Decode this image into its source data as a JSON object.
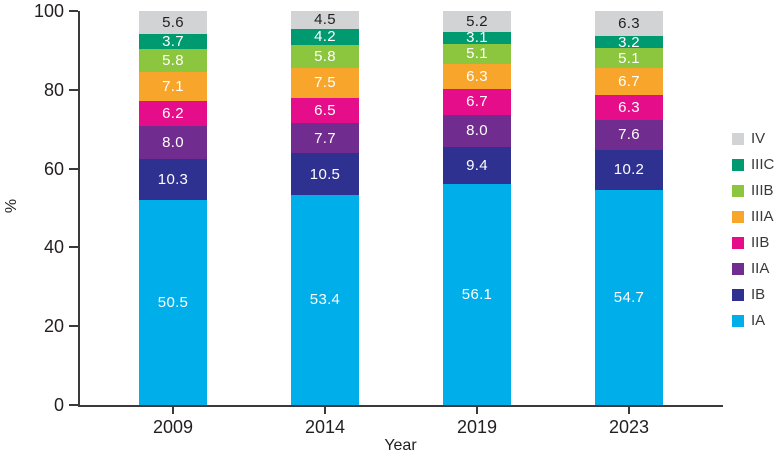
{
  "figure": {
    "title": "",
    "xlabel": "Year",
    "ylabel": "%"
  },
  "chart_data": {
    "type": "bar",
    "stacked": true,
    "percent_stacked": true,
    "title": "",
    "xlabel": "Year",
    "ylabel": "%",
    "ylim": [
      0,
      100
    ],
    "yticks": [
      0,
      20,
      40,
      60,
      80,
      100
    ],
    "grid": false,
    "legend_position": "right",
    "categories": [
      "2009",
      "2014",
      "2019",
      "2023"
    ],
    "series": [
      {
        "name": "IA",
        "color": "#00aeea",
        "label_color": "#ffffff",
        "values": [
          50.5,
          53.4,
          56.1,
          54.7
        ]
      },
      {
        "name": "IB",
        "color": "#2f3190",
        "label_color": "#ffffff",
        "values": [
          10.3,
          10.5,
          9.4,
          10.2
        ]
      },
      {
        "name": "IIA",
        "color": "#702c8e",
        "label_color": "#ffffff",
        "values": [
          8.0,
          7.7,
          8.0,
          7.6
        ]
      },
      {
        "name": "IIB",
        "color": "#e60d8a",
        "label_color": "#ffffff",
        "values": [
          6.2,
          6.5,
          6.7,
          6.3
        ]
      },
      {
        "name": "IIIA",
        "color": "#f7a62b",
        "label_color": "#ffffff",
        "values": [
          7.1,
          7.5,
          6.3,
          6.7
        ]
      },
      {
        "name": "IIIB",
        "color": "#8cc63f",
        "label_color": "#ffffff",
        "values": [
          5.8,
          5.8,
          5.1,
          5.1
        ]
      },
      {
        "name": "IIIC",
        "color": "#009a70",
        "label_color": "#ffffff",
        "values": [
          3.7,
          4.2,
          3.1,
          3.2
        ]
      },
      {
        "name": "IV",
        "color": "#d2d3d4",
        "label_color": "#231f20",
        "values": [
          5.6,
          4.5,
          5.2,
          6.3
        ]
      }
    ],
    "legend_order_top_to_bottom": [
      "IV",
      "IIIC",
      "IIIB",
      "IIIA",
      "IIB",
      "IIA",
      "IB",
      "IA"
    ],
    "axis_color": "#3a3a3a",
    "text_color": "#231f20"
  }
}
